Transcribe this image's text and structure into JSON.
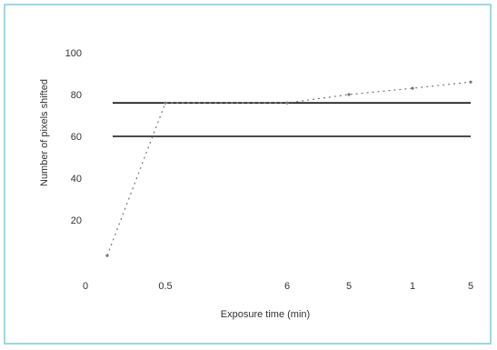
{
  "chart_data": {
    "type": "line",
    "title": "",
    "xlabel": "Exposure time (min)",
    "ylabel": "Number of pixels shifted",
    "x_tick_labels": [
      "0",
      "0.5",
      "6",
      "5",
      "1",
      "5"
    ],
    "y_tick_labels": [
      "20",
      "40",
      "60",
      "80",
      "100"
    ],
    "ylim": [
      0,
      100
    ],
    "series": [
      {
        "values": [
          {
            "x": "0",
            "y": 3
          },
          {
            "x": "0.5",
            "y": 76
          },
          {
            "x": "6",
            "y": 76
          },
          {
            "x": "5",
            "y": 80
          },
          {
            "x": "1",
            "y": 83
          },
          {
            "x": "5",
            "y": 86
          }
        ]
      }
    ],
    "reference_lines": [
      {
        "y": 76
      },
      {
        "y": 60
      }
    ],
    "grid": false,
    "legend": "none",
    "colors": {
      "series": "#777777",
      "reference": "#111111",
      "frame": "#9fd7e0"
    }
  }
}
